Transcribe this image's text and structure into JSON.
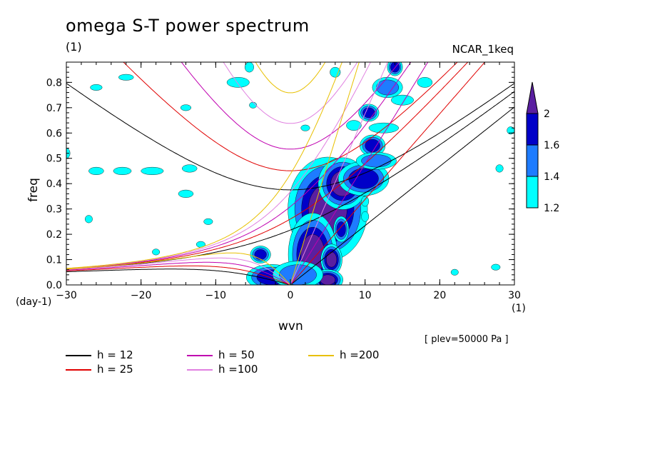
{
  "title": "omega S-T power spectrum",
  "subtitle": "(1)",
  "tag": "NCAR_1keq",
  "plev_note": "[ plev=50000 Pa ]",
  "colors": {
    "c1.2": "#00ffff",
    "c1.4": "#1e7cff",
    "c1.6": "#0000c8",
    "c2": "#5a1fa0"
  },
  "chart_data": {
    "type": "heatmap",
    "title": "omega S-T power spectrum",
    "xlabel": "wvn",
    "ylabel": "freq",
    "x_unit": "(1)",
    "y_unit": "(day-1)",
    "xlim": [
      -30,
      30
    ],
    "ylim": [
      0,
      0.88
    ],
    "x_ticks": [
      -30,
      -20,
      -10,
      0,
      10,
      20,
      30
    ],
    "y_ticks": [
      0.0,
      0.1,
      0.2,
      0.3,
      0.4,
      0.5,
      0.6,
      0.7,
      0.8
    ],
    "colorbar": {
      "levels": [
        "1.2",
        "1.4",
        "1.6",
        "2"
      ],
      "colors": [
        "#00ffff",
        "#1e7cff",
        "#0000c8",
        "#5a1fa0"
      ]
    },
    "dispersion_curves": [
      {
        "label": "h = 12",
        "h": 12,
        "color": "#000000"
      },
      {
        "label": "h = 25",
        "h": 25,
        "color": "#e00000"
      },
      {
        "label": "h = 50",
        "h": 50,
        "color": "#c000b0"
      },
      {
        "label": "h =100",
        "h": 100,
        "color": "#e080e0"
      },
      {
        "label": "h =200",
        "h": 200,
        "color": "#e8c000"
      }
    ],
    "blobs": [
      {
        "x": 5.0,
        "y": 0.3,
        "rx": 2.6,
        "ry": 0.1,
        "level": "2"
      },
      {
        "x": 3.0,
        "y": 0.12,
        "rx": 1.6,
        "ry": 0.08,
        "level": "2"
      },
      {
        "x": 7.0,
        "y": 0.4,
        "rx": 1.6,
        "ry": 0.05,
        "level": "2"
      },
      {
        "x": 5.5,
        "y": 0.1,
        "rx": 0.7,
        "ry": 0.03,
        "level": "2"
      },
      {
        "x": 5.0,
        "y": 0.02,
        "rx": 1.0,
        "ry": 0.02,
        "level": "2"
      },
      {
        "x": 6.8,
        "y": 0.22,
        "rx": 0.6,
        "ry": 0.03,
        "level": "1.6"
      },
      {
        "x": 9.8,
        "y": 0.42,
        "rx": 2.0,
        "ry": 0.04,
        "level": "1.6"
      },
      {
        "x": 11.0,
        "y": 0.55,
        "rx": 1.0,
        "ry": 0.025,
        "level": "1.6"
      },
      {
        "x": 11.5,
        "y": 0.49,
        "rx": 2.0,
        "ry": 0.025,
        "level": "1.4"
      },
      {
        "x": 10.5,
        "y": 0.68,
        "rx": 0.8,
        "ry": 0.02,
        "level": "1.6"
      },
      {
        "x": 13.0,
        "y": 0.78,
        "rx": 1.5,
        "ry": 0.03,
        "level": "1.4"
      },
      {
        "x": 14.0,
        "y": 0.86,
        "rx": 0.6,
        "ry": 0.02,
        "level": "1.6"
      },
      {
        "x": -4.0,
        "y": 0.12,
        "rx": 0.8,
        "ry": 0.02,
        "level": "1.6"
      },
      {
        "x": -2.5,
        "y": 0.03,
        "rx": 2.0,
        "ry": 0.03,
        "level": "1.6"
      },
      {
        "x": 1.0,
        "y": 0.04,
        "rx": 2.5,
        "ry": 0.04,
        "level": "1.4"
      },
      {
        "x": 12.5,
        "y": 0.62,
        "rx": 2.0,
        "ry": 0.02,
        "level": "1.2"
      },
      {
        "x": 8.5,
        "y": 0.63,
        "rx": 1.0,
        "ry": 0.02,
        "level": "1.2"
      },
      {
        "x": 10.0,
        "y": 0.27,
        "rx": 0.5,
        "ry": 0.02,
        "level": "1.2"
      },
      {
        "x": 10.0,
        "y": 0.33,
        "rx": 0.5,
        "ry": 0.02,
        "level": "1.2"
      },
      {
        "x": 15.0,
        "y": 0.73,
        "rx": 1.5,
        "ry": 0.02,
        "level": "1.2"
      },
      {
        "x": 18.0,
        "y": 0.8,
        "rx": 1.0,
        "ry": 0.02,
        "level": "1.2"
      },
      {
        "x": -26.0,
        "y": 0.45,
        "rx": 1.0,
        "ry": 0.015,
        "level": "1.2"
      },
      {
        "x": -22.5,
        "y": 0.45,
        "rx": 1.2,
        "ry": 0.015,
        "level": "1.2"
      },
      {
        "x": -18.5,
        "y": 0.45,
        "rx": 1.5,
        "ry": 0.015,
        "level": "1.2"
      },
      {
        "x": -14.0,
        "y": 0.36,
        "rx": 1.0,
        "ry": 0.015,
        "level": "1.2"
      },
      {
        "x": -13.5,
        "y": 0.46,
        "rx": 1.0,
        "ry": 0.015,
        "level": "1.2"
      },
      {
        "x": -7.0,
        "y": 0.8,
        "rx": 1.5,
        "ry": 0.02,
        "level": "1.2"
      },
      {
        "x": -5.5,
        "y": 0.86,
        "rx": 0.6,
        "ry": 0.02,
        "level": "1.2"
      },
      {
        "x": -26.0,
        "y": 0.78,
        "rx": 0.8,
        "ry": 0.012,
        "level": "1.2"
      },
      {
        "x": -22.0,
        "y": 0.82,
        "rx": 1.0,
        "ry": 0.012,
        "level": "1.2"
      },
      {
        "x": -30.0,
        "y": 0.52,
        "rx": 0.5,
        "ry": 0.02,
        "level": "1.2"
      },
      {
        "x": -27.0,
        "y": 0.26,
        "rx": 0.5,
        "ry": 0.015,
        "level": "1.2"
      },
      {
        "x": -11.0,
        "y": 0.25,
        "rx": 0.6,
        "ry": 0.012,
        "level": "1.2"
      },
      {
        "x": -12.0,
        "y": 0.16,
        "rx": 0.6,
        "ry": 0.012,
        "level": "1.2"
      },
      {
        "x": -18.0,
        "y": 0.13,
        "rx": 0.5,
        "ry": 0.012,
        "level": "1.2"
      },
      {
        "x": -5.0,
        "y": 0.71,
        "rx": 0.5,
        "ry": 0.012,
        "level": "1.2"
      },
      {
        "x": -14.0,
        "y": 0.7,
        "rx": 0.7,
        "ry": 0.012,
        "level": "1.2"
      },
      {
        "x": 28.0,
        "y": 0.46,
        "rx": 0.5,
        "ry": 0.015,
        "level": "1.2"
      },
      {
        "x": 29.5,
        "y": 0.61,
        "rx": 0.5,
        "ry": 0.015,
        "level": "1.2"
      },
      {
        "x": 27.5,
        "y": 0.07,
        "rx": 0.6,
        "ry": 0.012,
        "level": "1.2"
      },
      {
        "x": 22.0,
        "y": 0.05,
        "rx": 0.5,
        "ry": 0.012,
        "level": "1.2"
      },
      {
        "x": 2.0,
        "y": 0.62,
        "rx": 0.6,
        "ry": 0.012,
        "level": "1.2"
      },
      {
        "x": 6.0,
        "y": 0.84,
        "rx": 0.7,
        "ry": 0.02,
        "level": "1.2"
      }
    ]
  },
  "legend": [
    {
      "label": "h = 12",
      "color": "#000000"
    },
    {
      "label": "h = 50",
      "color": "#c000b0"
    },
    {
      "label": "h =200",
      "color": "#e8c000"
    },
    {
      "label": "h = 25",
      "color": "#e00000"
    },
    {
      "label": "h =100",
      "color": "#e080e0"
    }
  ]
}
